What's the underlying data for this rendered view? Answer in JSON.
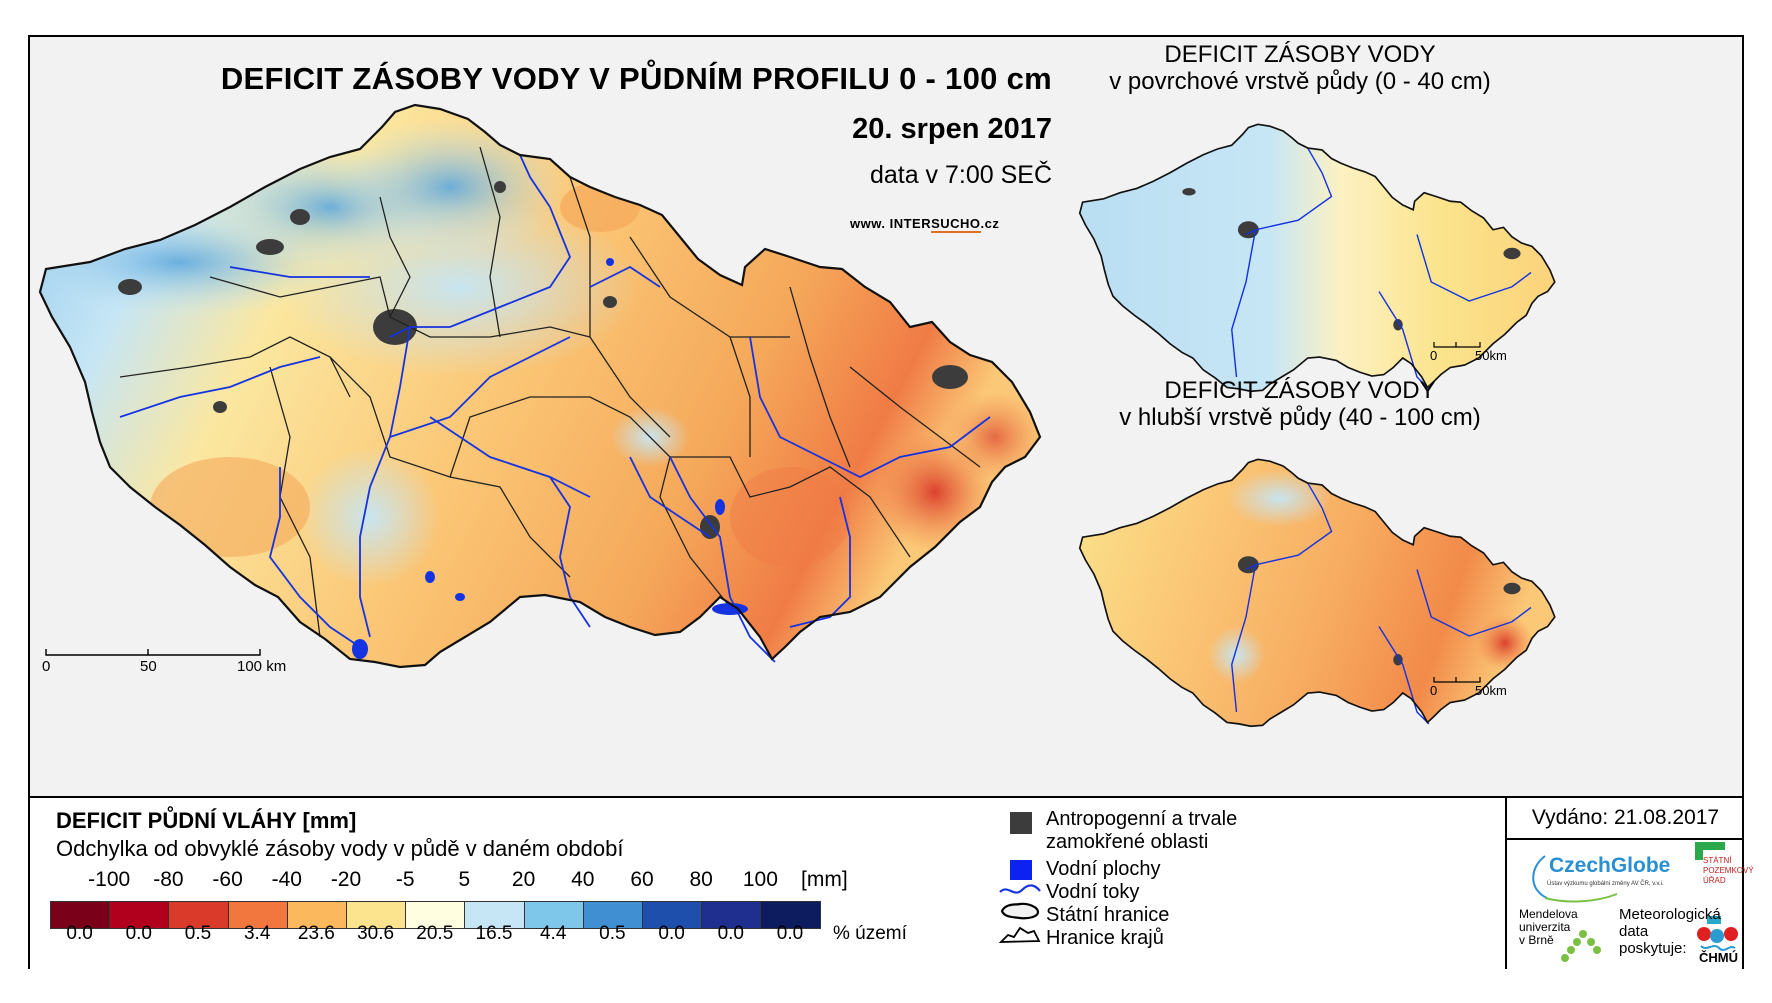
{
  "main_map": {
    "title": "DEFICIT ZÁSOBY VODY V PŮDNÍM PROFILU 0 - 100 cm",
    "date": "20. srpen 2017",
    "time_note": "data v 7:00 SEČ",
    "website_prefix": "www. INTER",
    "website_highlight": "SUCHO",
    "website_suffix": ".cz",
    "scale_labels": [
      "0",
      "50",
      "100 km"
    ]
  },
  "inset_top": {
    "title_line1": "DEFICIT ZÁSOBY VODY",
    "title_line2": "v povrchové vrstvě půdy (0 - 40 cm)",
    "scale_labels": [
      "0",
      "50km"
    ]
  },
  "inset_bottom": {
    "title_line1": "DEFICIT ZÁSOBY VODY",
    "title_line2": "v hlubší vrstvě půdy (40 - 100 cm)",
    "scale_labels": [
      "0",
      "50km"
    ]
  },
  "legend": {
    "title": "DEFICIT PŮDNÍ VLÁHY [mm]",
    "subtitle": "Odchylka od obvyklé zásoby vody v půdě v daném období",
    "breaks": [
      "-100",
      "-80",
      "-60",
      "-40",
      "-20",
      "-5",
      "5",
      "20",
      "40",
      "60",
      "80",
      "100"
    ],
    "unit": "[mm]",
    "colors": [
      "#7a0019",
      "#b0001e",
      "#d93a2a",
      "#f2773e",
      "#fbb85c",
      "#fbe48d",
      "#fffee0",
      "#c6e6f5",
      "#7fc7ea",
      "#3f8fd2",
      "#1f4fad",
      "#1f2f8f",
      "#0c1c5e"
    ],
    "percentages": [
      "0.0",
      "0.0",
      "0.5",
      "3.4",
      "23.6",
      "30.6",
      "20.5",
      "16.5",
      "4.4",
      "0.5",
      "0.0",
      "0.0",
      "0.0"
    ],
    "percent_unit": "% území"
  },
  "symbols": {
    "anthropogenic": "Antropogenní a trvale zamokřené oblasti",
    "water_bodies": "Vodní plochy",
    "rivers": "Vodní toky",
    "state_border": "Státní hranice",
    "region_border": "Hranice krajů"
  },
  "issued": "Vydáno: 21.08.2017",
  "logos": {
    "czechglobe": "CzechGlobe",
    "czechglobe_sub": "Ústav výzkumu globální změny AV ČR, v.v.i.",
    "spu_line1": "STÁTNÍ",
    "spu_line2": "POZEMKOVÝ",
    "spu_line3": "ÚŘAD",
    "mendelu_line1": "Mendelova",
    "mendelu_line2": "univerzita",
    "mendelu_line3": "v Brně",
    "chmu_line1": "Meteorologická",
    "chmu_line2": "data",
    "chmu_line3": "poskytuje:",
    "chmu": "ČHMÚ"
  }
}
